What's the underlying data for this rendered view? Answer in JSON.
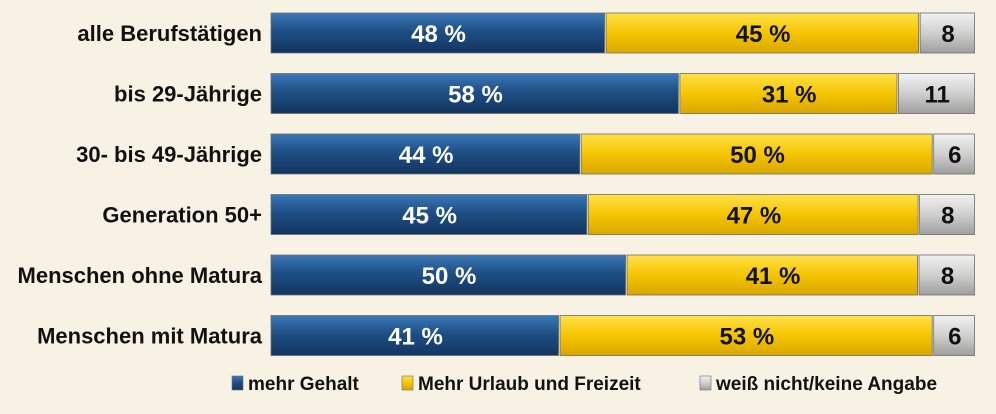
{
  "chart_data": {
    "type": "bar",
    "orientation": "horizontal",
    "stacked": true,
    "categories": [
      "alle  Berufstätigen",
      "bis 29-Jährige",
      "30- bis 49-Jährige",
      "Generation 50+",
      "Menschen ohne Matura",
      "Menschen mit Matura"
    ],
    "series": [
      {
        "name": "mehr Gehalt",
        "color": "#1f4f85",
        "values": [
          48,
          58,
          44,
          45,
          50,
          41
        ],
        "labels": [
          "48 %",
          "58 %",
          "44 %",
          "45 %",
          "50 %",
          "41 %"
        ]
      },
      {
        "name": "Mehr Urlaub und Freizeit",
        "color": "#f5c500",
        "values": [
          45,
          31,
          50,
          47,
          41,
          53
        ],
        "labels": [
          "45 %",
          "31 %",
          "50 %",
          "47 %",
          "41 %",
          "53 %"
        ]
      },
      {
        "name": "weiß nicht/keine Angabe",
        "color": "#c8c8c8",
        "values": [
          8,
          11,
          6,
          8,
          8,
          6
        ],
        "labels": [
          "8",
          "11",
          "6",
          "8",
          "8",
          "6"
        ]
      }
    ],
    "title": "",
    "xlabel": "",
    "ylabel": "",
    "xlim": [
      0,
      100
    ],
    "grid": false,
    "legend": "bottom"
  }
}
